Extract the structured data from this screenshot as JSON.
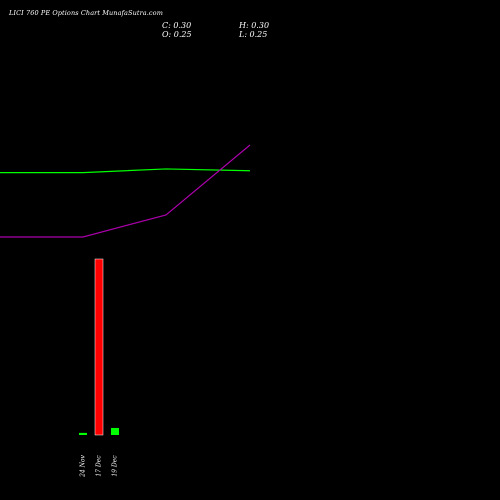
{
  "title": "LICI 760  PE Options  Chart MunafaSutra.com",
  "ohlc": {
    "close_label": "C: 0.30",
    "high_label": "H: 0.30",
    "open_label": "O: 0.25",
    "low_label": "L: 0.25"
  },
  "colors": {
    "background": "#000000",
    "green_line": "#00ff00",
    "purple_line": "#aa00aa",
    "volume_down": "#ff0000",
    "volume_up": "#00ff00",
    "text": "#ffffff"
  },
  "chart_data": {
    "type": "line",
    "categories": [
      "24 Nov",
      "17 Dec",
      "19 Dec"
    ],
    "series": [
      {
        "values": [
          0.6,
          0.62,
          0.61
        ],
        "color": "green"
      },
      {
        "values": [
          0.25,
          0.37,
          0.75
        ],
        "color": "purple"
      }
    ],
    "volume": {
      "type": "bar",
      "categories": [
        "24 Nov",
        "17 Dec",
        "19 Dec"
      ],
      "values": [
        0.012,
        1.0,
        0.04
      ],
      "colors": [
        "green",
        "red",
        "green"
      ]
    },
    "grid": false,
    "legend": "none"
  }
}
